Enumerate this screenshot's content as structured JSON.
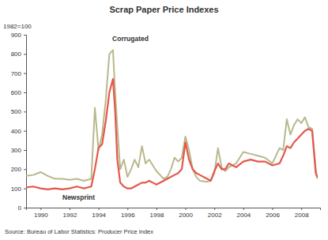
{
  "chart_data": {
    "type": "line",
    "title": "Scrap Paper Price Indexes",
    "subtitle": "1982=100",
    "source": "Source: Bureau of Labor Statistics: Producer Price Index",
    "x": [
      1989,
      1989.5,
      1990,
      1990.5,
      1991,
      1991.5,
      1992,
      1992.5,
      1993,
      1993.5,
      1993.75,
      1994,
      1994.25,
      1994.5,
      1994.75,
      1995,
      1995.15,
      1995.3,
      1995.5,
      1995.75,
      1996,
      1996.25,
      1996.5,
      1996.75,
      1997,
      1997.25,
      1997.5,
      1997.75,
      1998,
      1998.5,
      1998.75,
      1999,
      1999.25,
      1999.5,
      1999.75,
      2000,
      2000.25,
      2000.5,
      2000.75,
      2001,
      2001.5,
      2001.75,
      2002,
      2002.25,
      2002.5,
      2002.75,
      2003,
      2003.5,
      2004,
      2004.5,
      2005,
      2005.5,
      2006,
      2006.5,
      2006.75,
      2007,
      2007.25,
      2007.5,
      2007.75,
      2008,
      2008.25,
      2008.5,
      2008.75,
      2009,
      2009.1
    ],
    "series": [
      {
        "name": "Corrugated",
        "color": "#b9b88c",
        "values": [
          165,
          170,
          185,
          165,
          150,
          150,
          145,
          150,
          140,
          150,
          520,
          300,
          380,
          560,
          800,
          820,
          600,
          420,
          200,
          250,
          160,
          200,
          250,
          210,
          320,
          230,
          250,
          220,
          190,
          150,
          160,
          200,
          260,
          240,
          260,
          370,
          300,
          200,
          160,
          140,
          135,
          140,
          180,
          310,
          210,
          190,
          210,
          230,
          290,
          280,
          270,
          260,
          230,
          310,
          300,
          460,
          380,
          430,
          460,
          440,
          470,
          420,
          410,
          200,
          150
        ]
      },
      {
        "name": "Newsprint",
        "color": "#e5574b",
        "values": [
          105,
          110,
          100,
          95,
          100,
          95,
          100,
          110,
          100,
          110,
          200,
          310,
          330,
          450,
          600,
          670,
          500,
          250,
          130,
          110,
          100,
          100,
          110,
          120,
          130,
          130,
          140,
          130,
          120,
          140,
          150,
          160,
          170,
          180,
          200,
          340,
          250,
          200,
          180,
          170,
          150,
          140,
          190,
          230,
          200,
          200,
          230,
          210,
          240,
          250,
          240,
          240,
          220,
          230,
          270,
          320,
          310,
          340,
          360,
          380,
          400,
          410,
          400,
          180,
          160
        ]
      }
    ],
    "xlim": [
      1989,
      2009.3
    ],
    "xticks": [
      1990,
      1992,
      1994,
      1996,
      1998,
      2000,
      2002,
      2004,
      2006,
      2008
    ],
    "ylim": [
      0,
      900
    ],
    "yticks": [
      0,
      100,
      200,
      300,
      400,
      500,
      600,
      700,
      800,
      900
    ],
    "grid": false
  }
}
